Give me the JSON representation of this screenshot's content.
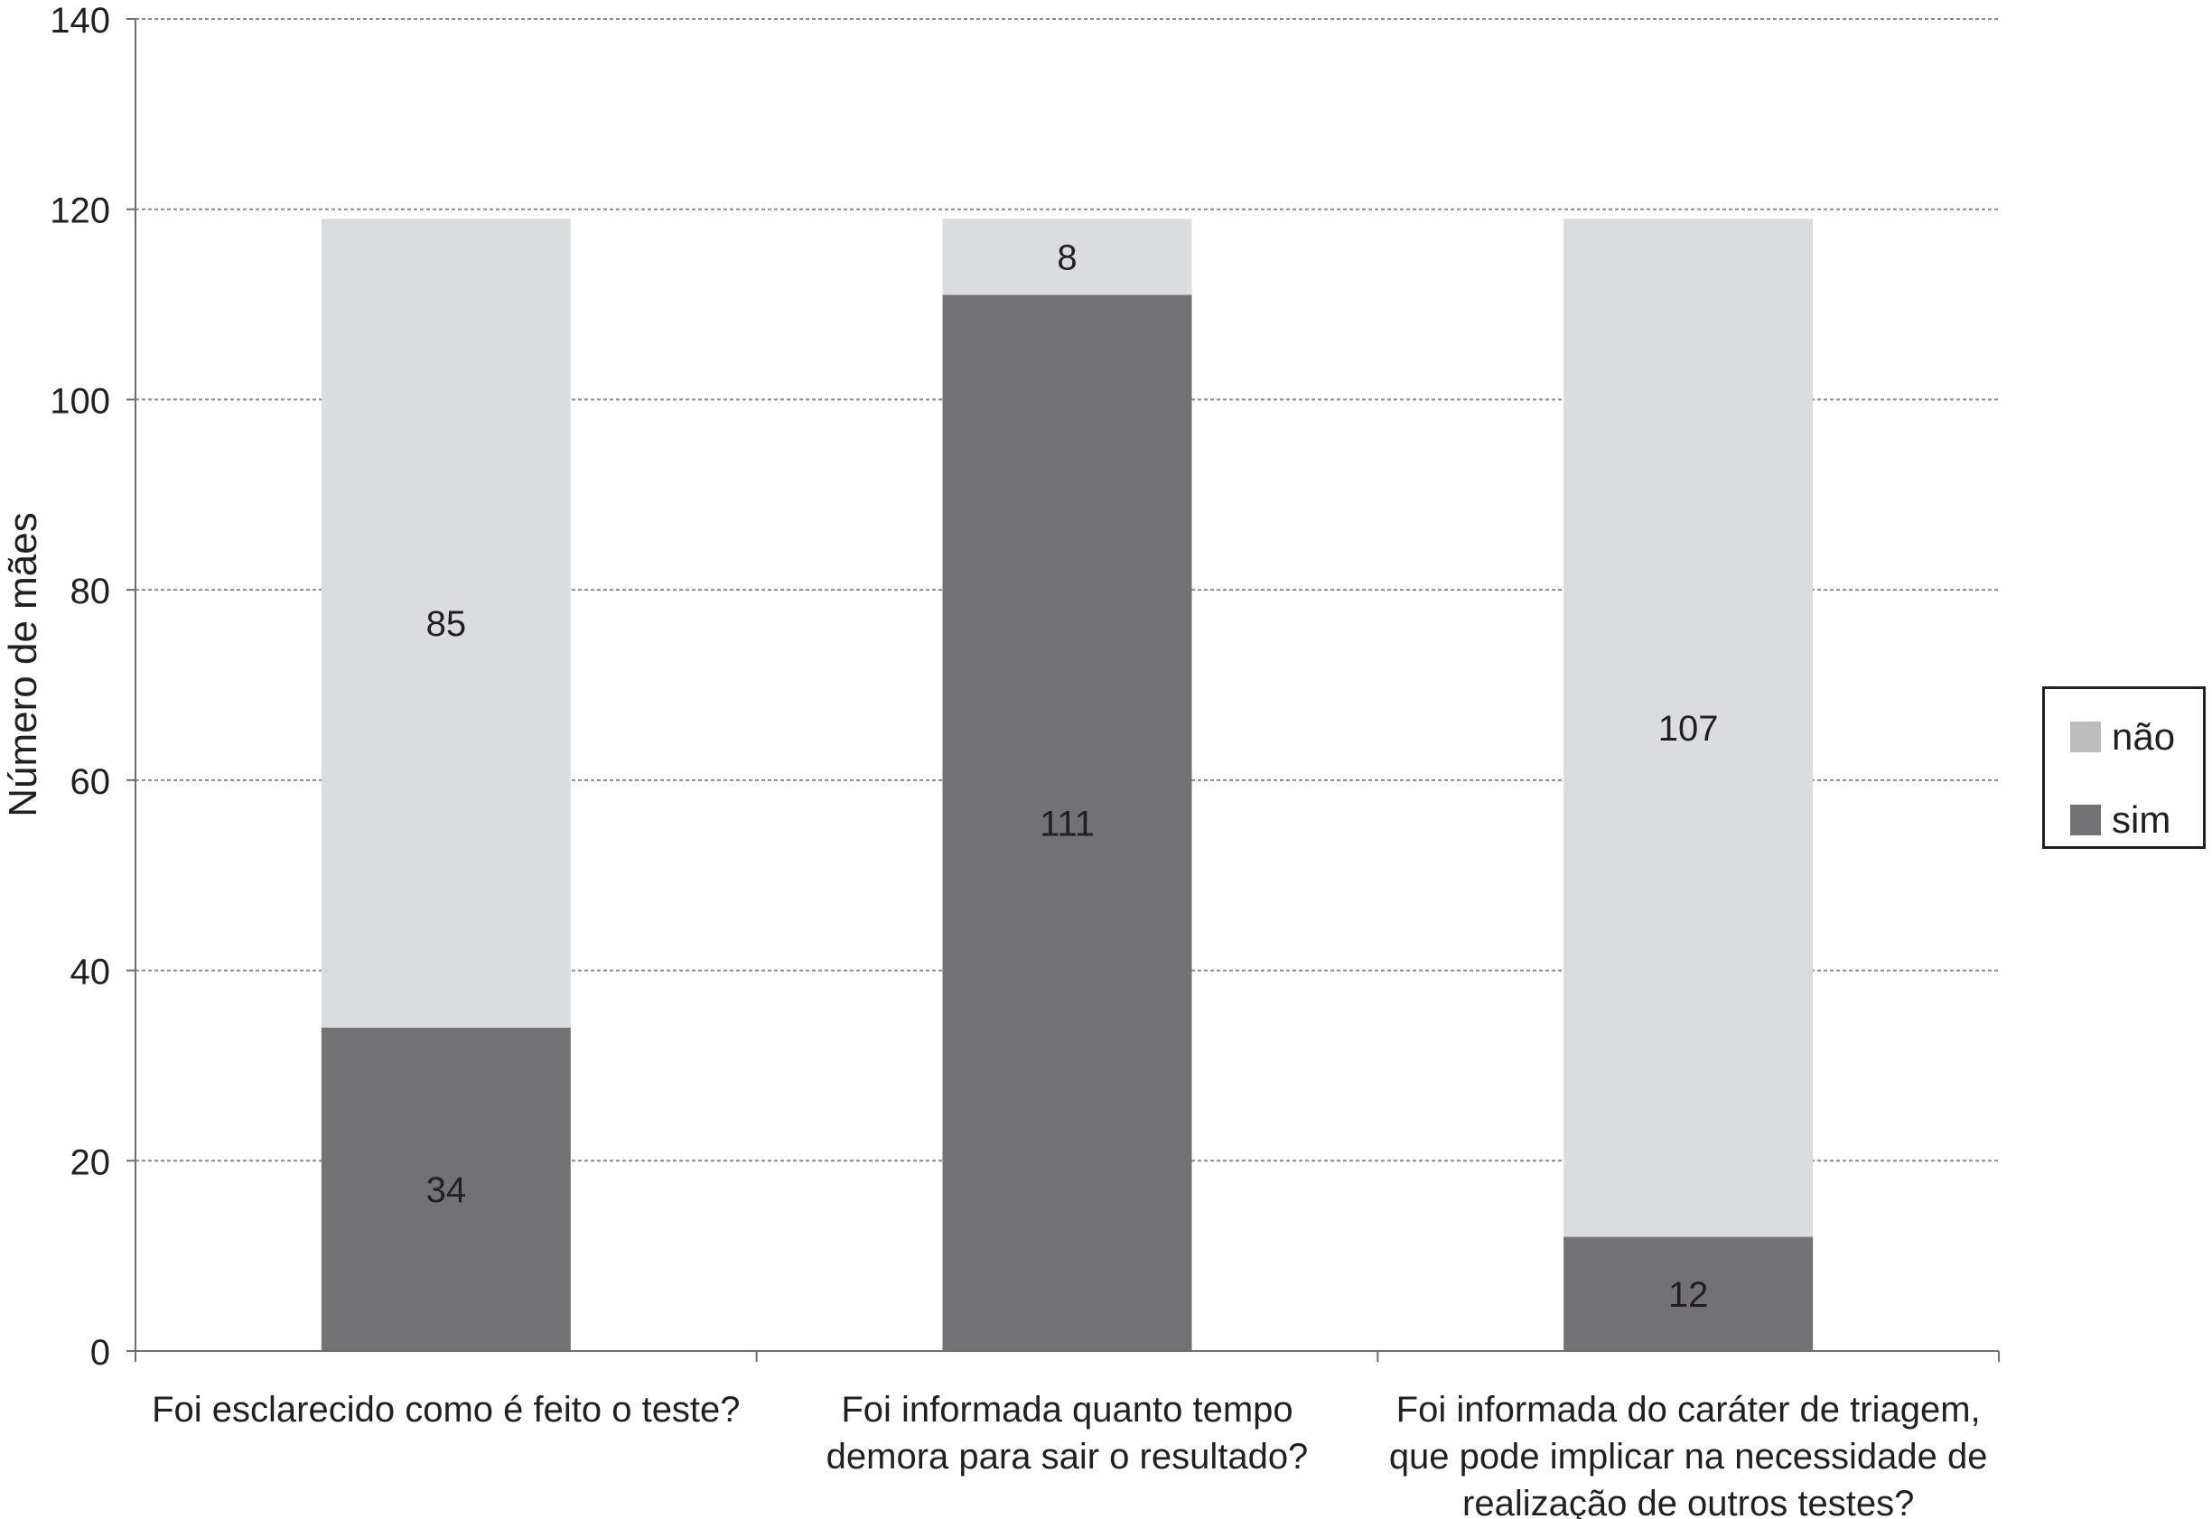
{
  "chart_data": {
    "type": "bar",
    "stacked": true,
    "categories": [
      [
        "Foi esclarecido como é feito o teste?"
      ],
      [
        "Foi informada quanto tempo",
        "demora para sair o resultado?"
      ],
      [
        "Foi informada do caráter de triagem,",
        "que pode implicar na necessidade de",
        "realização de outros testes?"
      ]
    ],
    "series": [
      {
        "name": "sim",
        "values": [
          34,
          111,
          12
        ],
        "color": "#727274"
      },
      {
        "name": "não",
        "values": [
          85,
          8,
          107
        ],
        "color": "#dbdcde"
      }
    ],
    "ylabel": "Número de mães",
    "xlabel": "",
    "ylim": [
      0,
      140
    ],
    "yticks": [
      0,
      20,
      40,
      60,
      80,
      100,
      120,
      140
    ],
    "grid": true,
    "legend_position": "right",
    "legend_order": [
      "não",
      "sim"
    ]
  },
  "legend_swatch_colors": {
    "não": "#bbbcbe",
    "sim": "#727274"
  }
}
